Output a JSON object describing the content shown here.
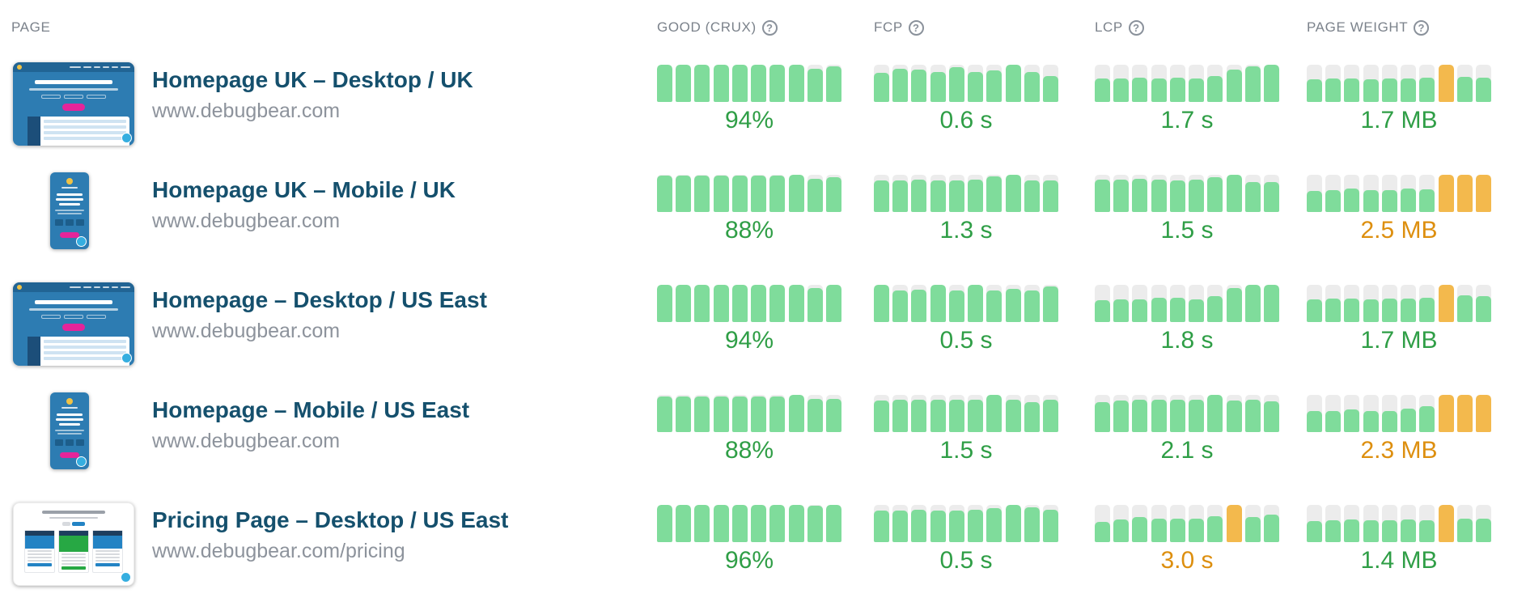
{
  "colors": {
    "bar_green": "#7fdc9b",
    "bar_orange": "#f3b94d",
    "bar_track": "#ececec",
    "value_green": "#2f9e46",
    "value_orange": "#dd8f0f",
    "title_navy": "#15506d",
    "url_gray": "#8d939c",
    "header_gray": "#7b828b",
    "thumb_blue": "#2d7cb2",
    "thumb_pink": "#e5249a",
    "badge_blue": "#35aee0"
  },
  "header": {
    "page_label": "PAGE",
    "help_icon": "?",
    "metrics": [
      {
        "id": "good",
        "label": "GOOD (CRUX)"
      },
      {
        "id": "fcp",
        "label": "FCP"
      },
      {
        "id": "lcp",
        "label": "LCP"
      },
      {
        "id": "weight",
        "label": "PAGE WEIGHT"
      }
    ]
  },
  "rows": [
    {
      "title": "Homepage UK – Desktop / UK",
      "url": "www.debugbear.com",
      "thumbnail": {
        "type": "desktop-homepage"
      },
      "metrics": {
        "good": {
          "value": "94%",
          "tone": "green",
          "bars": [
            [
              1,
              "green"
            ],
            [
              1,
              "green"
            ],
            [
              1,
              "green"
            ],
            [
              1,
              "green"
            ],
            [
              1,
              "green"
            ],
            [
              1,
              "green"
            ],
            [
              1,
              "green"
            ],
            [
              1,
              "green"
            ],
            [
              0.9,
              "green"
            ],
            [
              0.96,
              "green"
            ]
          ]
        },
        "fcp": {
          "value": "0.6 s",
          "tone": "green",
          "bars": [
            [
              0.78,
              "green"
            ],
            [
              0.9,
              "green"
            ],
            [
              0.86,
              "green"
            ],
            [
              0.8,
              "green"
            ],
            [
              0.93,
              "green"
            ],
            [
              0.8,
              "green"
            ],
            [
              0.84,
              "green"
            ],
            [
              1,
              "green"
            ],
            [
              0.8,
              "green"
            ],
            [
              0.7,
              "green"
            ]
          ]
        },
        "lcp": {
          "value": "1.7 s",
          "tone": "green",
          "bars": [
            [
              0.62,
              "green"
            ],
            [
              0.64,
              "green"
            ],
            [
              0.66,
              "green"
            ],
            [
              0.62,
              "green"
            ],
            [
              0.65,
              "green"
            ],
            [
              0.62,
              "green"
            ],
            [
              0.7,
              "green"
            ],
            [
              0.88,
              "green"
            ],
            [
              0.96,
              "green"
            ],
            [
              1,
              "green"
            ]
          ]
        },
        "weight": {
          "value": "1.7 MB",
          "tone": "green",
          "bars": [
            [
              0.6,
              "green"
            ],
            [
              0.62,
              "green"
            ],
            [
              0.62,
              "green"
            ],
            [
              0.6,
              "green"
            ],
            [
              0.62,
              "green"
            ],
            [
              0.62,
              "green"
            ],
            [
              0.66,
              "green"
            ],
            [
              1,
              "orange"
            ],
            [
              0.68,
              "green"
            ],
            [
              0.66,
              "green"
            ]
          ]
        }
      }
    },
    {
      "title": "Homepage UK – Mobile / UK",
      "url": "www.debugbear.com",
      "thumbnail": {
        "type": "mobile-homepage"
      },
      "metrics": {
        "good": {
          "value": "88%",
          "tone": "green",
          "bars": [
            [
              0.97,
              "green"
            ],
            [
              0.97,
              "green"
            ],
            [
              0.97,
              "green"
            ],
            [
              0.97,
              "green"
            ],
            [
              0.97,
              "green"
            ],
            [
              0.97,
              "green"
            ],
            [
              0.97,
              "green"
            ],
            [
              1,
              "green"
            ],
            [
              0.9,
              "green"
            ],
            [
              0.94,
              "green"
            ]
          ]
        },
        "fcp": {
          "value": "1.3 s",
          "tone": "green",
          "bars": [
            [
              0.84,
              "green"
            ],
            [
              0.84,
              "green"
            ],
            [
              0.88,
              "green"
            ],
            [
              0.84,
              "green"
            ],
            [
              0.84,
              "green"
            ],
            [
              0.88,
              "green"
            ],
            [
              0.96,
              "green"
            ],
            [
              1,
              "green"
            ],
            [
              0.84,
              "green"
            ],
            [
              0.84,
              "green"
            ]
          ]
        },
        "lcp": {
          "value": "1.5 s",
          "tone": "green",
          "bars": [
            [
              0.86,
              "green"
            ],
            [
              0.86,
              "green"
            ],
            [
              0.9,
              "green"
            ],
            [
              0.86,
              "green"
            ],
            [
              0.84,
              "green"
            ],
            [
              0.86,
              "green"
            ],
            [
              0.94,
              "green"
            ],
            [
              1,
              "green"
            ],
            [
              0.8,
              "green"
            ],
            [
              0.8,
              "green"
            ]
          ]
        },
        "weight": {
          "value": "2.5 MB",
          "tone": "orange",
          "bars": [
            [
              0.56,
              "green"
            ],
            [
              0.58,
              "green"
            ],
            [
              0.62,
              "green"
            ],
            [
              0.58,
              "green"
            ],
            [
              0.58,
              "green"
            ],
            [
              0.64,
              "green"
            ],
            [
              0.6,
              "green"
            ],
            [
              1,
              "orange"
            ],
            [
              1,
              "orange"
            ],
            [
              1,
              "orange"
            ]
          ]
        }
      }
    },
    {
      "title": "Homepage – Desktop / US East",
      "url": "www.debugbear.com",
      "thumbnail": {
        "type": "desktop-homepage"
      },
      "metrics": {
        "good": {
          "value": "94%",
          "tone": "green",
          "bars": [
            [
              1,
              "green"
            ],
            [
              1,
              "green"
            ],
            [
              1,
              "green"
            ],
            [
              1,
              "green"
            ],
            [
              1,
              "green"
            ],
            [
              1,
              "green"
            ],
            [
              1,
              "green"
            ],
            [
              1,
              "green"
            ],
            [
              0.92,
              "green"
            ],
            [
              1,
              "green"
            ]
          ]
        },
        "fcp": {
          "value": "0.5 s",
          "tone": "green",
          "bars": [
            [
              1,
              "green"
            ],
            [
              0.84,
              "green"
            ],
            [
              0.88,
              "green"
            ],
            [
              1,
              "green"
            ],
            [
              0.84,
              "green"
            ],
            [
              1,
              "green"
            ],
            [
              0.84,
              "green"
            ],
            [
              0.9,
              "green"
            ],
            [
              0.84,
              "green"
            ],
            [
              0.95,
              "green"
            ]
          ]
        },
        "lcp": {
          "value": "1.8 s",
          "tone": "green",
          "bars": [
            [
              0.58,
              "green"
            ],
            [
              0.6,
              "green"
            ],
            [
              0.6,
              "green"
            ],
            [
              0.66,
              "green"
            ],
            [
              0.66,
              "green"
            ],
            [
              0.6,
              "green"
            ],
            [
              0.7,
              "green"
            ],
            [
              0.92,
              "green"
            ],
            [
              1,
              "green"
            ],
            [
              1,
              "green"
            ]
          ]
        },
        "weight": {
          "value": "1.7 MB",
          "tone": "green",
          "bars": [
            [
              0.6,
              "green"
            ],
            [
              0.64,
              "green"
            ],
            [
              0.62,
              "green"
            ],
            [
              0.6,
              "green"
            ],
            [
              0.62,
              "green"
            ],
            [
              0.64,
              "green"
            ],
            [
              0.66,
              "green"
            ],
            [
              1,
              "orange"
            ],
            [
              0.72,
              "green"
            ],
            [
              0.7,
              "green"
            ]
          ]
        }
      }
    },
    {
      "title": "Homepage – Mobile / US East",
      "url": "www.debugbear.com",
      "thumbnail": {
        "type": "mobile-homepage"
      },
      "metrics": {
        "good": {
          "value": "88%",
          "tone": "green",
          "bars": [
            [
              0.96,
              "green"
            ],
            [
              0.96,
              "green"
            ],
            [
              0.96,
              "green"
            ],
            [
              0.96,
              "green"
            ],
            [
              0.96,
              "green"
            ],
            [
              0.96,
              "green"
            ],
            [
              0.96,
              "green"
            ],
            [
              1,
              "green"
            ],
            [
              0.9,
              "green"
            ],
            [
              0.9,
              "green"
            ]
          ]
        },
        "fcp": {
          "value": "1.5 s",
          "tone": "green",
          "bars": [
            [
              0.84,
              "green"
            ],
            [
              0.88,
              "green"
            ],
            [
              0.88,
              "green"
            ],
            [
              0.88,
              "green"
            ],
            [
              0.88,
              "green"
            ],
            [
              0.88,
              "green"
            ],
            [
              1,
              "green"
            ],
            [
              0.88,
              "green"
            ],
            [
              0.8,
              "green"
            ],
            [
              0.88,
              "green"
            ]
          ]
        },
        "lcp": {
          "value": "2.1 s",
          "tone": "green",
          "bars": [
            [
              0.8,
              "green"
            ],
            [
              0.84,
              "green"
            ],
            [
              0.88,
              "green"
            ],
            [
              0.86,
              "green"
            ],
            [
              0.88,
              "green"
            ],
            [
              0.88,
              "green"
            ],
            [
              1,
              "green"
            ],
            [
              0.84,
              "green"
            ],
            [
              0.86,
              "green"
            ],
            [
              0.82,
              "green"
            ]
          ]
        },
        "weight": {
          "value": "2.3 MB",
          "tone": "orange",
          "bars": [
            [
              0.56,
              "green"
            ],
            [
              0.56,
              "green"
            ],
            [
              0.6,
              "green"
            ],
            [
              0.56,
              "green"
            ],
            [
              0.56,
              "green"
            ],
            [
              0.64,
              "green"
            ],
            [
              0.7,
              "green"
            ],
            [
              1,
              "orange"
            ],
            [
              1,
              "orange"
            ],
            [
              1,
              "orange"
            ]
          ]
        }
      }
    },
    {
      "title": "Pricing Page – Desktop / US East",
      "url": "www.debugbear.com/pricing",
      "thumbnail": {
        "type": "pricing-desktop"
      },
      "metrics": {
        "good": {
          "value": "96%",
          "tone": "green",
          "bars": [
            [
              1,
              "green"
            ],
            [
              1,
              "green"
            ],
            [
              1,
              "green"
            ],
            [
              1,
              "green"
            ],
            [
              1,
              "green"
            ],
            [
              1,
              "green"
            ],
            [
              1,
              "green"
            ],
            [
              1,
              "green"
            ],
            [
              0.97,
              "green"
            ],
            [
              1,
              "green"
            ]
          ]
        },
        "fcp": {
          "value": "0.5 s",
          "tone": "green",
          "bars": [
            [
              0.84,
              "green"
            ],
            [
              0.84,
              "green"
            ],
            [
              0.88,
              "green"
            ],
            [
              0.84,
              "green"
            ],
            [
              0.84,
              "green"
            ],
            [
              0.88,
              "green"
            ],
            [
              0.92,
              "green"
            ],
            [
              1,
              "green"
            ],
            [
              0.94,
              "green"
            ],
            [
              0.88,
              "green"
            ]
          ]
        },
        "lcp": {
          "value": "3.0 s",
          "tone": "orange",
          "bars": [
            [
              0.54,
              "green"
            ],
            [
              0.6,
              "green"
            ],
            [
              0.68,
              "green"
            ],
            [
              0.64,
              "green"
            ],
            [
              0.64,
              "green"
            ],
            [
              0.64,
              "green"
            ],
            [
              0.7,
              "green"
            ],
            [
              1,
              "orange"
            ],
            [
              0.68,
              "green"
            ],
            [
              0.74,
              "green"
            ]
          ]
        },
        "weight": {
          "value": "1.4 MB",
          "tone": "green",
          "bars": [
            [
              0.56,
              "green"
            ],
            [
              0.58,
              "green"
            ],
            [
              0.6,
              "green"
            ],
            [
              0.58,
              "green"
            ],
            [
              0.58,
              "green"
            ],
            [
              0.6,
              "green"
            ],
            [
              0.58,
              "green"
            ],
            [
              1,
              "orange"
            ],
            [
              0.64,
              "green"
            ],
            [
              0.62,
              "green"
            ]
          ]
        }
      }
    }
  ]
}
